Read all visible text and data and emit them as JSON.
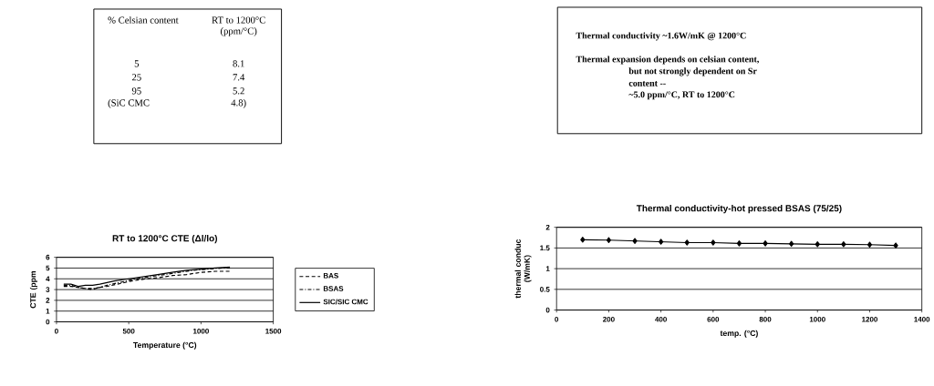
{
  "chart_data": [
    {
      "type": "other",
      "annotations": [
        "% Celsian content",
        "RT to 1200°C",
        "(ppm/°C)",
        "5",
        "8.1",
        "25",
        "7.4",
        "95",
        "5.2",
        "(SiC CMC",
        "4.8)"
      ]
    },
    {
      "type": "other",
      "annotations": [
        "Thermal conductivity   ~1.6W/mK @ 1200°C",
        "Thermal expansion depends on celsian content,",
        "but not strongly dependent on Sr",
        "content --",
        "~5.0  ppm/°C, RT to 1200°C"
      ]
    },
    {
      "type": "line",
      "title": "RT to 1200°C CTE (Δl/lo)",
      "xlabel": "Temperature   (°C)",
      "ylabel": "CTE (ppm",
      "xlim": [
        0,
        1500
      ],
      "xticks": [
        0,
        500,
        1000,
        1500
      ],
      "ylim": [
        0,
        6
      ],
      "yticks": [
        0,
        1,
        2,
        3,
        4,
        5,
        6
      ],
      "grid": "y",
      "legend": "right",
      "marker": "none",
      "series": [
        {
          "name": "BAS",
          "color": "#000000",
          "line_style": "dashed",
          "x": [
            50,
            100,
            150,
            200,
            250,
            270,
            300,
            350,
            420,
            520,
            620,
            700,
            800,
            900,
            1000,
            1100,
            1200
          ],
          "values": [
            3.3,
            3.3,
            3.2,
            3.1,
            3.0,
            3.1,
            3.2,
            3.3,
            3.5,
            3.8,
            4.0,
            4.1,
            4.3,
            4.4,
            4.6,
            4.7,
            4.7
          ]
        },
        {
          "name": "BSAS",
          "color": "#000000",
          "line_style": "dashdot",
          "x": [
            50,
            100,
            150,
            200,
            250,
            300,
            350,
            450,
            550,
            650,
            750,
            850,
            950,
            1050,
            1150,
            1200
          ],
          "values": [
            3.4,
            3.4,
            3.2,
            3.1,
            3.1,
            3.2,
            3.4,
            3.7,
            4.0,
            4.2,
            4.4,
            4.6,
            4.8,
            4.9,
            5.0,
            5.0
          ]
        },
        {
          "name": "SIC/SIC CMC",
          "color": "#000000",
          "line_style": "solid",
          "x": [
            50,
            100,
            150,
            200,
            250,
            300,
            400,
            500,
            600,
            700,
            800,
            900,
            1000,
            1100,
            1200
          ],
          "values": [
            3.5,
            3.5,
            3.3,
            3.4,
            3.4,
            3.5,
            3.8,
            4.0,
            4.2,
            4.4,
            4.6,
            4.8,
            4.9,
            5.0,
            5.1
          ]
        }
      ]
    },
    {
      "type": "line",
      "title": "Thermal conductivity-hot pressed BSAS (75/25)",
      "xlabel": "temp. (°C)",
      "ylabel": "thermal conduc (W/mK)",
      "xlim": [
        0,
        1400
      ],
      "xticks": [
        0,
        200,
        400,
        600,
        800,
        1000,
        1200,
        1400
      ],
      "ylim": [
        0,
        2
      ],
      "yticks": [
        0,
        0.5,
        1,
        1.5,
        2
      ],
      "grid": "y",
      "legend": false,
      "marker": "diamond",
      "line_style": "solid",
      "series": [
        {
          "color": "#000000",
          "x": [
            100,
            200,
            300,
            400,
            500,
            600,
            700,
            800,
            900,
            1000,
            1100,
            1200,
            1300
          ],
          "values": [
            1.7,
            1.69,
            1.67,
            1.65,
            1.63,
            1.63,
            1.61,
            1.61,
            1.6,
            1.59,
            1.59,
            1.58,
            1.56
          ]
        }
      ]
    }
  ]
}
